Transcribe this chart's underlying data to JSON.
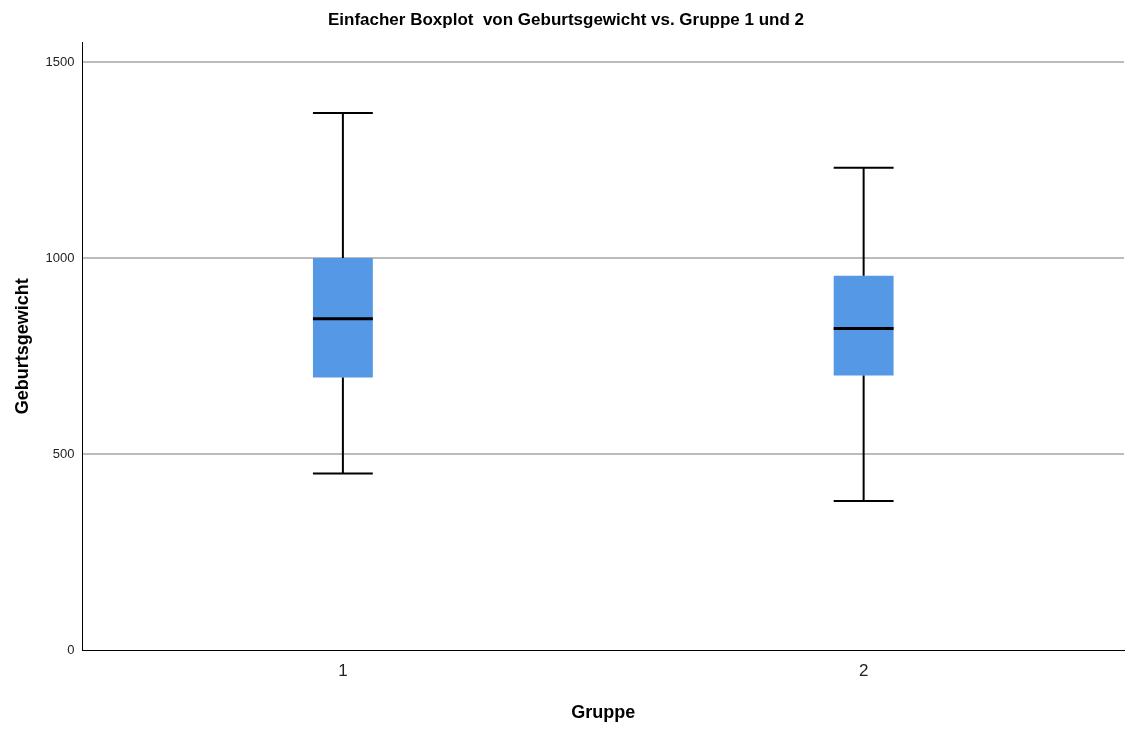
{
  "chart_data": {
    "type": "box",
    "title": "Einfacher Boxplot  von Geburtsgewicht vs. Gruppe 1 und 2",
    "xlabel": "Gruppe",
    "ylabel": "Geburtsgewicht",
    "categories": [
      "1",
      "2"
    ],
    "color": "#5599e6",
    "boxes": [
      {
        "low": 450,
        "q1": 695,
        "median": 845,
        "q3": 1000,
        "high": 1370
      },
      {
        "low": 380,
        "q1": 700,
        "median": 820,
        "q3": 955,
        "high": 1230
      }
    ],
    "ylim": [
      0,
      1550
    ],
    "yticks": [
      0,
      500,
      1000,
      1500
    ],
    "grid": "y",
    "legend": false
  }
}
